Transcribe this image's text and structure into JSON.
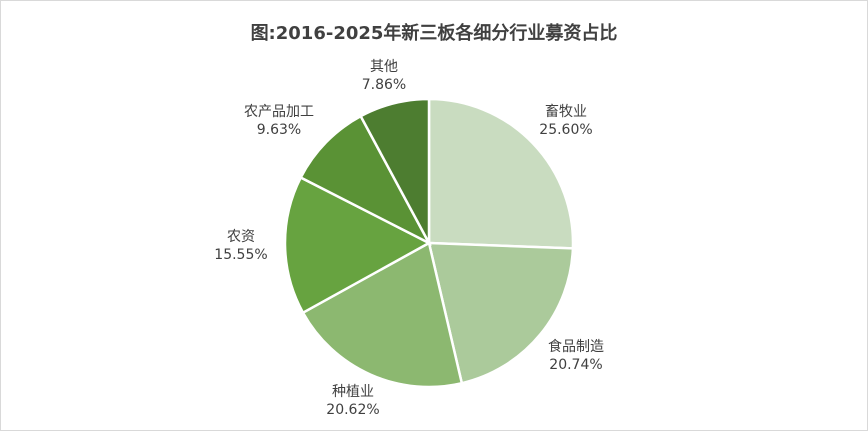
{
  "chart_data": {
    "type": "pie",
    "title": "图:2016-2025年新三板各细分行业募资占比",
    "legend": "none",
    "slices": [
      {
        "label": "畜牧业",
        "value": 25.6,
        "display": "25.60%",
        "color": "#c9dcc0"
      },
      {
        "label": "食品制造",
        "value": 20.74,
        "display": "20.74%",
        "color": "#abca9b"
      },
      {
        "label": "种植业",
        "value": 20.62,
        "display": "20.62%",
        "color": "#8cb870"
      },
      {
        "label": "农资",
        "value": 15.55,
        "display": "15.55%",
        "color": "#67a340"
      },
      {
        "label": "农产品加工",
        "value": 9.63,
        "display": "9.63%",
        "color": "#5a9235"
      },
      {
        "label": "其他",
        "value": 7.86,
        "display": "7.86%",
        "color": "#4d7d30"
      }
    ]
  }
}
